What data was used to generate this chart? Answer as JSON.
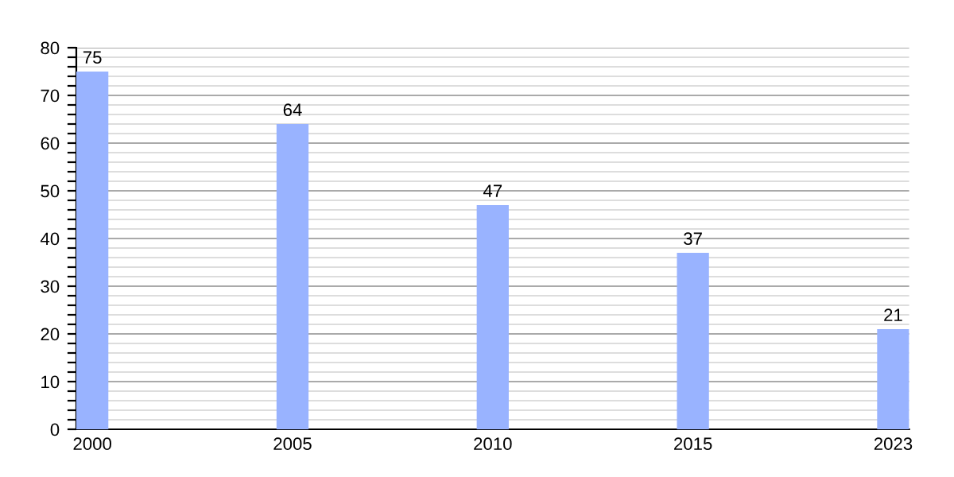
{
  "chart_data": {
    "type": "bar",
    "categories": [
      "2000",
      "2005",
      "2010",
      "2015",
      "2023"
    ],
    "values": [
      75,
      64,
      47,
      37,
      21
    ],
    "color": "#99b3ff",
    "data_labels": true,
    "ylim": [
      0,
      80
    ],
    "yticks": [
      0,
      {
        "value": 2,
        "label": null
      },
      {
        "value": 4,
        "label": null
      },
      {
        "value": 6,
        "label": null
      },
      {
        "value": 8,
        "label": null
      },
      10,
      {
        "value": 12,
        "label": null
      },
      {
        "value": 14,
        "label": null
      },
      {
        "value": 16,
        "label": null
      },
      {
        "value": 18,
        "label": null
      },
      20,
      {
        "value": 22,
        "label": null
      },
      {
        "value": 24,
        "label": null
      },
      {
        "value": 26,
        "label": null
      },
      {
        "value": 28,
        "label": null
      },
      30,
      {
        "value": 32,
        "label": null
      },
      {
        "value": 34,
        "label": null
      },
      {
        "value": 36,
        "label": null
      },
      {
        "value": 38,
        "label": null
      },
      40,
      {
        "value": 42,
        "label": null
      },
      {
        "value": 44,
        "label": null
      },
      {
        "value": 46,
        "label": null
      },
      {
        "value": 48,
        "label": null
      },
      50,
      {
        "value": 52,
        "label": null
      },
      {
        "value": 54,
        "label": null
      },
      {
        "value": 56,
        "label": null
      },
      {
        "value": 58,
        "label": null
      },
      60,
      {
        "value": 62,
        "label": null
      },
      {
        "value": 64,
        "label": null
      },
      {
        "value": 66,
        "label": null
      },
      {
        "value": 68,
        "label": null
      },
      70,
      {
        "value": 72,
        "label": null
      },
      {
        "value": 74,
        "label": null
      },
      {
        "value": 76,
        "label": null
      },
      {
        "value": 78,
        "label": null
      },
      80
    ],
    "grid": "y"
  }
}
